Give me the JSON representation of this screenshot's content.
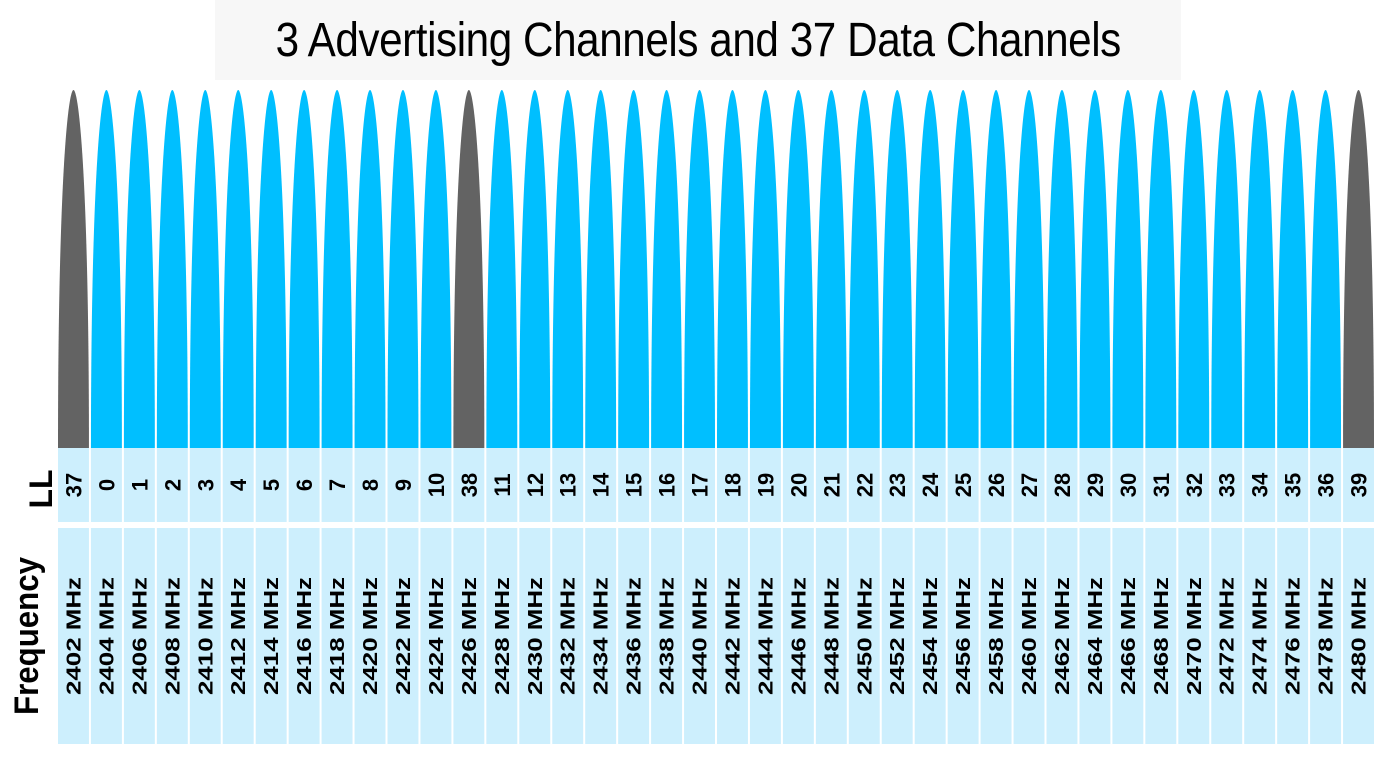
{
  "title": "3 Advertising Channels and 37 Data Channels",
  "row_labels": {
    "ll": "LL",
    "frequency": "Frequency"
  },
  "colors": {
    "advertising": "#636363",
    "data": "#00bfff",
    "cell_background": "#cdeffd",
    "title_background": "#f7f7f7"
  },
  "channels": [
    {
      "ll": "37",
      "freq": "2402 MHz",
      "type": "advertising"
    },
    {
      "ll": "0",
      "freq": "2404 MHz",
      "type": "data"
    },
    {
      "ll": "1",
      "freq": "2406 MHz",
      "type": "data"
    },
    {
      "ll": "2",
      "freq": "2408 MHz",
      "type": "data"
    },
    {
      "ll": "3",
      "freq": "2410 MHz",
      "type": "data"
    },
    {
      "ll": "4",
      "freq": "2412 MHz",
      "type": "data"
    },
    {
      "ll": "5",
      "freq": "2414 MHz",
      "type": "data"
    },
    {
      "ll": "6",
      "freq": "2416 MHz",
      "type": "data"
    },
    {
      "ll": "7",
      "freq": "2418 MHz",
      "type": "data"
    },
    {
      "ll": "8",
      "freq": "2420 MHz",
      "type": "data"
    },
    {
      "ll": "9",
      "freq": "2422 MHz",
      "type": "data"
    },
    {
      "ll": "10",
      "freq": "2424 MHz",
      "type": "data"
    },
    {
      "ll": "38",
      "freq": "2426 MHz",
      "type": "advertising"
    },
    {
      "ll": "11",
      "freq": "2428 MHz",
      "type": "data"
    },
    {
      "ll": "12",
      "freq": "2430 MHz",
      "type": "data"
    },
    {
      "ll": "13",
      "freq": "2432 MHz",
      "type": "data"
    },
    {
      "ll": "14",
      "freq": "2434 MHz",
      "type": "data"
    },
    {
      "ll": "15",
      "freq": "2436 MHz",
      "type": "data"
    },
    {
      "ll": "16",
      "freq": "2438 MHz",
      "type": "data"
    },
    {
      "ll": "17",
      "freq": "2440 MHz",
      "type": "data"
    },
    {
      "ll": "18",
      "freq": "2442 MHz",
      "type": "data"
    },
    {
      "ll": "19",
      "freq": "2444 MHz",
      "type": "data"
    },
    {
      "ll": "20",
      "freq": "2446 MHz",
      "type": "data"
    },
    {
      "ll": "21",
      "freq": "2448 MHz",
      "type": "data"
    },
    {
      "ll": "22",
      "freq": "2450 MHz",
      "type": "data"
    },
    {
      "ll": "23",
      "freq": "2452 MHz",
      "type": "data"
    },
    {
      "ll": "24",
      "freq": "2454 MHz",
      "type": "data"
    },
    {
      "ll": "25",
      "freq": "2456 MHz",
      "type": "data"
    },
    {
      "ll": "26",
      "freq": "2458 MHz",
      "type": "data"
    },
    {
      "ll": "27",
      "freq": "2460 MHz",
      "type": "data"
    },
    {
      "ll": "28",
      "freq": "2462 MHz",
      "type": "data"
    },
    {
      "ll": "29",
      "freq": "2464 MHz",
      "type": "data"
    },
    {
      "ll": "30",
      "freq": "2466 MHz",
      "type": "data"
    },
    {
      "ll": "31",
      "freq": "2468 MHz",
      "type": "data"
    },
    {
      "ll": "32",
      "freq": "2470 MHz",
      "type": "data"
    },
    {
      "ll": "33",
      "freq": "2472 MHz",
      "type": "data"
    },
    {
      "ll": "34",
      "freq": "2474 MHz",
      "type": "data"
    },
    {
      "ll": "35",
      "freq": "2476 MHz",
      "type": "data"
    },
    {
      "ll": "36",
      "freq": "2478 MHz",
      "type": "data"
    },
    {
      "ll": "39",
      "freq": "2480 MHz",
      "type": "advertising"
    }
  ]
}
